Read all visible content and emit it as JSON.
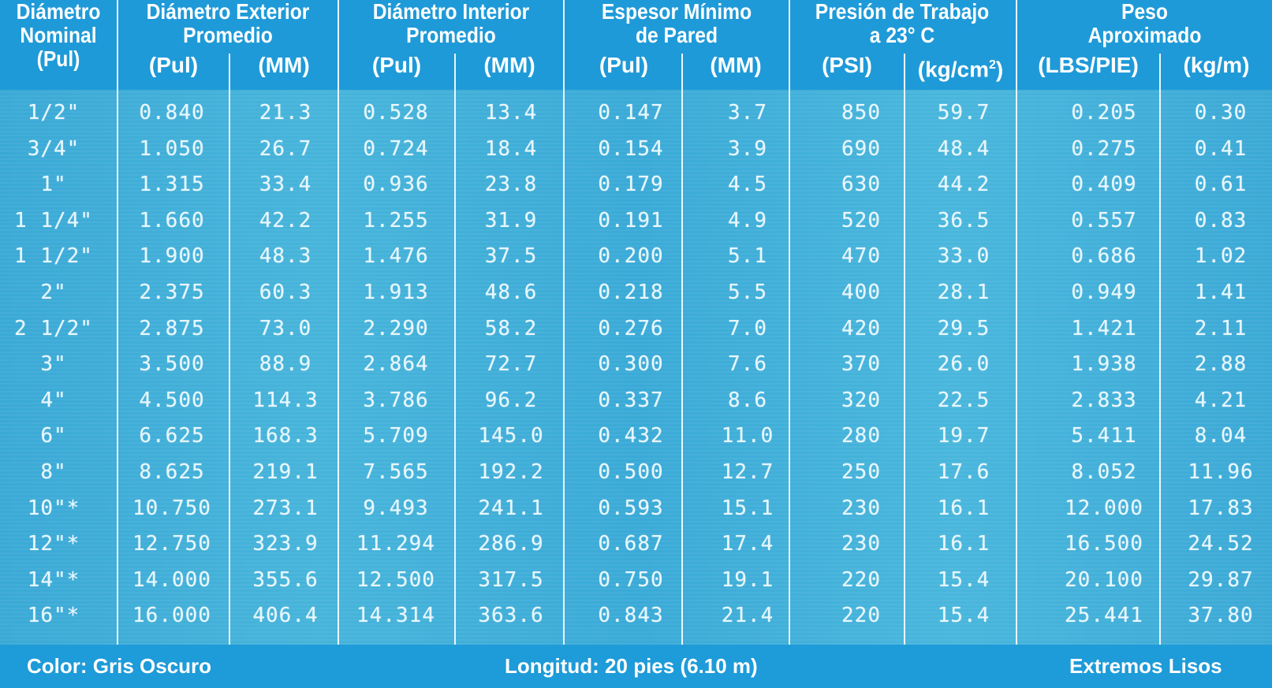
{
  "headers": {
    "nominal": [
      "Diámetro",
      "Nominal",
      "(Pul)"
    ],
    "outer": [
      "Diámetro Exterior",
      "Promedio"
    ],
    "inner": [
      "Diámetro Interior",
      "Promedio"
    ],
    "wall": [
      "Espesor Mínimo",
      "de Pared"
    ],
    "pressure": [
      "Presión de Trabajo",
      "a 23° C"
    ],
    "weight": [
      "Peso",
      "Aproximado"
    ],
    "units": {
      "outer_pul": "(Pul)",
      "outer_mm": "(MM)",
      "inner_pul": "(Pul)",
      "inner_mm": "(MM)",
      "wall_pul": "(Pul)",
      "wall_mm": "(MM)",
      "press_psi": "(PSI)",
      "press_kg": "(kg/cm",
      "press_kg_sup": "2",
      "press_kg_close": ")",
      "weight_lbs": "(LBS/PIE)",
      "weight_kgm": "(kg/m)"
    }
  },
  "rows": [
    [
      "1/2\"",
      "0.840",
      "21.3",
      "0.528",
      "13.4",
      "0.147",
      "3.7",
      "850",
      "59.7",
      "0.205",
      "0.30"
    ],
    [
      "3/4\"",
      "1.050",
      "26.7",
      "0.724",
      "18.4",
      "0.154",
      "3.9",
      "690",
      "48.4",
      "0.275",
      "0.41"
    ],
    [
      "1\"",
      "1.315",
      "33.4",
      "0.936",
      "23.8",
      "0.179",
      "4.5",
      "630",
      "44.2",
      "0.409",
      "0.61"
    ],
    [
      "1 1/4\"",
      "1.660",
      "42.2",
      "1.255",
      "31.9",
      "0.191",
      "4.9",
      "520",
      "36.5",
      "0.557",
      "0.83"
    ],
    [
      "1 1/2\"",
      "1.900",
      "48.3",
      "1.476",
      "37.5",
      "0.200",
      "5.1",
      "470",
      "33.0",
      "0.686",
      "1.02"
    ],
    [
      "2\"",
      "2.375",
      "60.3",
      "1.913",
      "48.6",
      "0.218",
      "5.5",
      "400",
      "28.1",
      "0.949",
      "1.41"
    ],
    [
      "2 1/2\"",
      "2.875",
      "73.0",
      "2.290",
      "58.2",
      "0.276",
      "7.0",
      "420",
      "29.5",
      "1.421",
      "2.11"
    ],
    [
      "3\"",
      "3.500",
      "88.9",
      "2.864",
      "72.7",
      "0.300",
      "7.6",
      "370",
      "26.0",
      "1.938",
      "2.88"
    ],
    [
      "4\"",
      "4.500",
      "114.3",
      "3.786",
      "96.2",
      "0.337",
      "8.6",
      "320",
      "22.5",
      "2.833",
      "4.21"
    ],
    [
      "6\"",
      "6.625",
      "168.3",
      "5.709",
      "145.0",
      "0.432",
      "11.0",
      "280",
      "19.7",
      "5.411",
      "8.04"
    ],
    [
      "8\"",
      "8.625",
      "219.1",
      "7.565",
      "192.2",
      "0.500",
      "12.7",
      "250",
      "17.6",
      "8.052",
      "11.96"
    ],
    [
      "10\"*",
      "10.750",
      "273.1",
      "9.493",
      "241.1",
      "0.593",
      "15.1",
      "230",
      "16.1",
      "12.000",
      "17.83"
    ],
    [
      "12\"*",
      "12.750",
      "323.9",
      "11.294",
      "286.9",
      "0.687",
      "17.4",
      "230",
      "16.1",
      "16.500",
      "24.52"
    ],
    [
      "14\"*",
      "14.000",
      "355.6",
      "12.500",
      "317.5",
      "0.750",
      "19.1",
      "220",
      "15.4",
      "20.100",
      "29.87"
    ],
    [
      "16\"*",
      "16.000",
      "406.4",
      "14.314",
      "363.6",
      "0.843",
      "21.4",
      "220",
      "15.4",
      "25.441",
      "37.80"
    ]
  ],
  "footer": {
    "color": "Color: Gris Oscuro",
    "length": "Longitud: 20 pies (6.10 m)",
    "ends": "Extremos Lisos"
  },
  "colors": {
    "header_bg": "#1f9ad8",
    "body_bg": "#3fb0d9",
    "text": "#ffffff"
  }
}
